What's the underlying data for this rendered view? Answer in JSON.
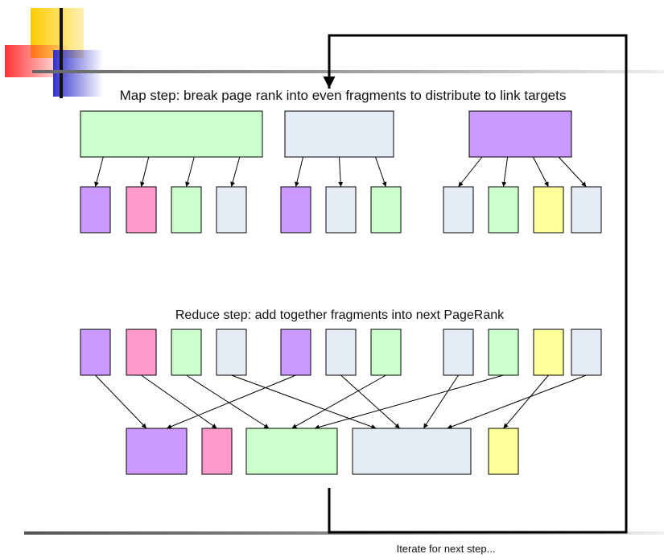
{
  "labels": {
    "map_title": "Map step: break page rank into even fragments to distribute to link targets",
    "reduce_title": "Reduce step: add together fragments into next PageRank",
    "iterate": "Iterate for next step..."
  },
  "colors": {
    "purple": "#CC99FF",
    "pink": "#FF99CC",
    "green": "#CCFFCC",
    "lightblue": "#E6ECF5",
    "yellow": "#FFFF99",
    "stroke": "#000000",
    "decor_yellow": "#FFCC00",
    "decor_red": "#FF3333",
    "decor_blue": "#3333CC"
  },
  "map_sources": [
    "green",
    "lightblue",
    "purple"
  ],
  "map_fragments": [
    [
      "purple",
      "pink",
      "green",
      "lightblue"
    ],
    [
      "purple",
      "lightblue",
      "green"
    ],
    [
      "lightblue",
      "green",
      "yellow",
      "lightblue"
    ]
  ],
  "reduce_fragments": [
    "purple",
    "pink",
    "green",
    "lightblue",
    "purple",
    "lightblue",
    "green",
    "lightblue",
    "green",
    "yellow",
    "lightblue"
  ],
  "reduce_results": [
    "purple",
    "pink",
    "green",
    "lightblue",
    "yellow"
  ],
  "reduce_mapping": [
    0,
    1,
    2,
    3,
    0,
    3,
    2,
    3,
    2,
    4,
    3
  ]
}
